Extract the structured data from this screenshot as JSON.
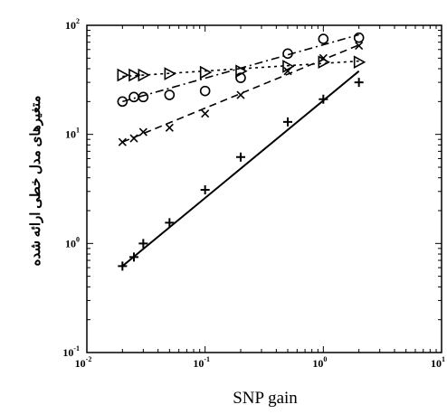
{
  "chart_data": {
    "type": "scatter",
    "title": "",
    "xlabel": "SNP gain",
    "ylabel": "متغیرهای مدل خطی ارائه شده",
    "xscale": "log",
    "yscale": "log",
    "xlim": [
      0.01,
      10
    ],
    "ylim": [
      0.1,
      100
    ],
    "grid": false,
    "legend": "none",
    "x_ticks": [
      {
        "value": 0.01,
        "base": "10",
        "exp": "-2"
      },
      {
        "value": 0.1,
        "base": "10",
        "exp": "-1"
      },
      {
        "value": 1,
        "base": "10",
        "exp": "0"
      },
      {
        "value": 10,
        "base": "10",
        "exp": "1"
      }
    ],
    "y_ticks": [
      {
        "value": 0.1,
        "base": "10",
        "exp": "-1"
      },
      {
        "value": 1,
        "base": "10",
        "exp": "0"
      },
      {
        "value": 10,
        "base": "10",
        "exp": "1"
      },
      {
        "value": 100,
        "base": "10",
        "exp": "2"
      }
    ],
    "series": [
      {
        "marker": "triangle-right",
        "line_style": "dotted",
        "color": "#000000",
        "points": [
          [
            0.02,
            35
          ],
          [
            0.025,
            35
          ],
          [
            0.03,
            35
          ],
          [
            0.05,
            36
          ],
          [
            0.1,
            37
          ],
          [
            0.2,
            38
          ],
          [
            0.5,
            42
          ],
          [
            1.0,
            46
          ],
          [
            2.0,
            46
          ]
        ],
        "fit_line": [
          [
            0.02,
            34
          ],
          [
            2.0,
            47
          ]
        ]
      },
      {
        "marker": "circle",
        "line_style": "dash-dot",
        "color": "#000000",
        "points": [
          [
            0.02,
            20
          ],
          [
            0.025,
            22
          ],
          [
            0.03,
            22
          ],
          [
            0.05,
            23
          ],
          [
            0.1,
            25
          ],
          [
            0.2,
            33
          ],
          [
            0.5,
            55
          ],
          [
            1.0,
            75
          ],
          [
            2.0,
            77
          ]
        ],
        "fit_line": [
          [
            0.02,
            20
          ],
          [
            2.0,
            82
          ]
        ]
      },
      {
        "marker": "x",
        "line_style": "dashed",
        "color": "#000000",
        "points": [
          [
            0.02,
            8.5
          ],
          [
            0.025,
            9.2
          ],
          [
            0.03,
            10.5
          ],
          [
            0.05,
            11.5
          ],
          [
            0.1,
            15.5
          ],
          [
            0.2,
            23
          ],
          [
            0.5,
            38
          ],
          [
            1.0,
            50
          ],
          [
            2.0,
            65
          ]
        ],
        "fit_line": [
          [
            0.02,
            8.5
          ],
          [
            2.0,
            66
          ]
        ]
      },
      {
        "marker": "plus",
        "line_style": "solid",
        "color": "#000000",
        "points": [
          [
            0.02,
            0.62
          ],
          [
            0.025,
            0.75
          ],
          [
            0.03,
            1.0
          ],
          [
            0.05,
            1.55
          ],
          [
            0.1,
            3.1
          ],
          [
            0.2,
            6.2
          ],
          [
            0.5,
            13
          ],
          [
            1.0,
            21
          ],
          [
            2.0,
            30
          ]
        ],
        "fit_line": [
          [
            0.02,
            0.62
          ],
          [
            2.0,
            38
          ]
        ]
      }
    ]
  }
}
